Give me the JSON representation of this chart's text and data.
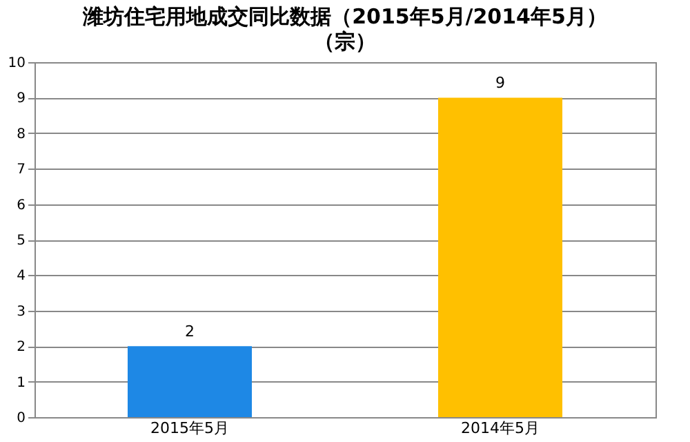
{
  "chart_data": {
    "type": "bar",
    "title": "潍坊住宅用地成交同比数据（2015年5月/2014年5月）",
    "subtitle": "（宗）",
    "categories": [
      "2015年5月",
      "2014年5月"
    ],
    "values": [
      2,
      9
    ],
    "colors": [
      "#1e88e5",
      "#ffc000"
    ],
    "ylim": [
      0,
      10
    ],
    "yticks": [
      0,
      1,
      2,
      3,
      4,
      5,
      6,
      7,
      8,
      9,
      10
    ],
    "grid": "y",
    "data_labels": true
  }
}
